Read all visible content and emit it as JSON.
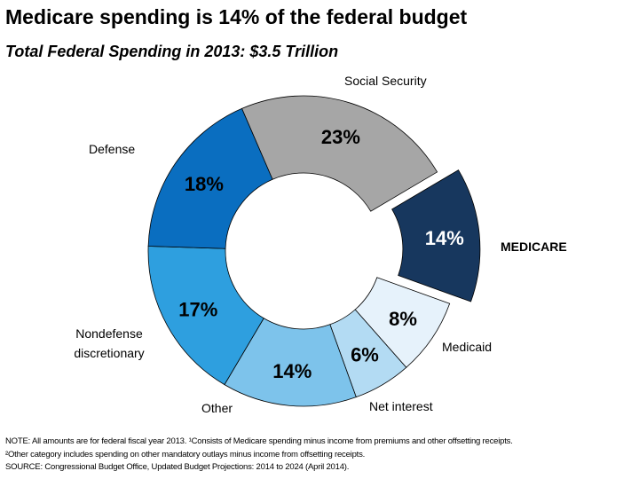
{
  "chart_data": {
    "type": "pie",
    "variant": "donut",
    "title": "Medicare spending is 14% of the federal budget",
    "subtitle": "Total Federal Spending in 2013: $3.5 Trillion",
    "slices": [
      {
        "label": "Social Security",
        "value": 23,
        "display": "23%",
        "color": "#A6A6A6",
        "text_color": "#000000"
      },
      {
        "label": "MEDICARE",
        "value": 14,
        "display": "14%",
        "color": "#17375E",
        "text_color": "#FFFFFF",
        "exploded": true
      },
      {
        "label": "Medicaid",
        "value": 8,
        "display": "8%",
        "color": "#E6F2FB",
        "text_color": "#000000"
      },
      {
        "label": "Net interest",
        "value": 6,
        "display": "6%",
        "color": "#B3DBF3",
        "text_color": "#000000"
      },
      {
        "label": "Other",
        "value": 14,
        "display": "14%",
        "color": "#7DC3EB",
        "text_color": "#000000"
      },
      {
        "label": "Nondefense discretionary",
        "value": 17,
        "display": "17%",
        "color": "#2E9FDF",
        "text_color": "#000000"
      },
      {
        "label": "Defense",
        "value": 18,
        "display": "18%",
        "color": "#0A6EC0",
        "text_color": "#000000"
      }
    ],
    "notes": [
      "NOTE: All amounts are for federal fiscal year 2013.  ¹Consists of Medicare spending minus income from premiums and other offsetting receipts.",
      "²Other category includes spending on other mandatory outlays minus income from offsetting receipts.",
      "SOURCE: Congressional Budget Office, Updated Budget Projections: 2014 to 2024 (April 2014)."
    ]
  }
}
